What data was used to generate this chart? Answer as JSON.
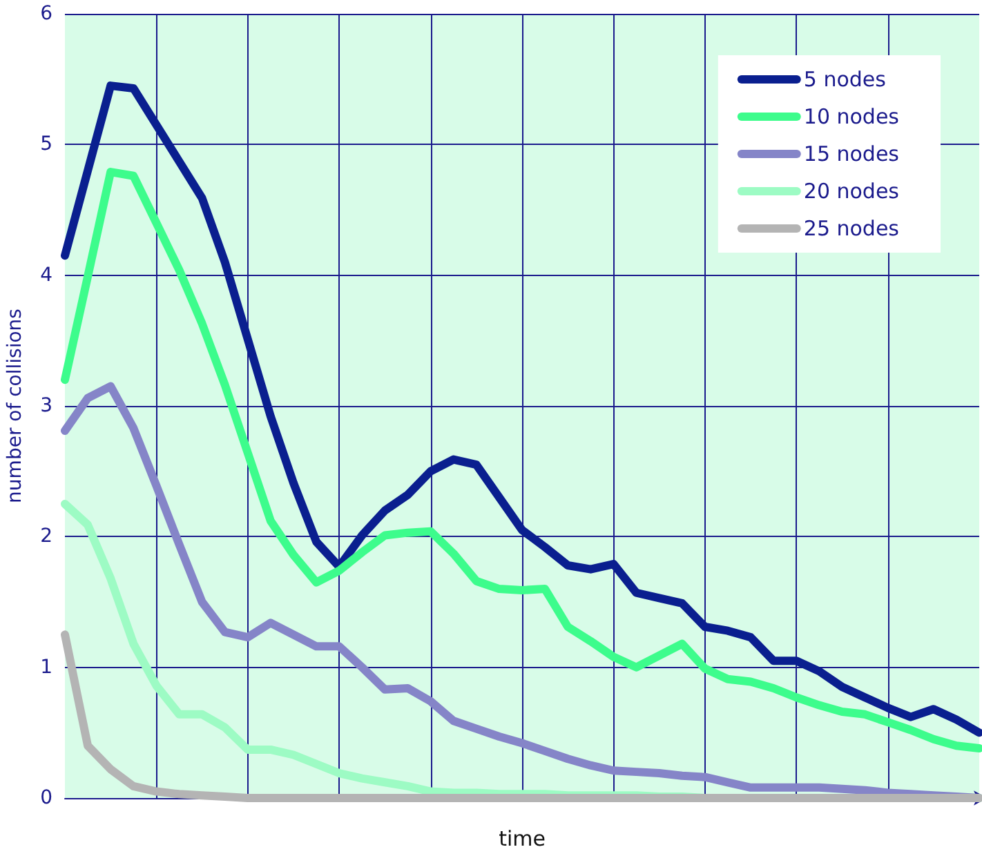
{
  "chart_data": {
    "type": "line",
    "xlabel": "time",
    "ylabel": "number of collisions",
    "categories": [
      null,
      null,
      null,
      null,
      null,
      null,
      null,
      null,
      null,
      null,
      null,
      null,
      null,
      null,
      null,
      null,
      null,
      null,
      null,
      null,
      null,
      null,
      null,
      null,
      null,
      null,
      null,
      null,
      null,
      null,
      null,
      null,
      null,
      null,
      null,
      null,
      null,
      null,
      null,
      null,
      null
    ],
    "series": [
      {
        "name": "5 nodes",
        "color": "#0a1f8f",
        "values": [
          4.15,
          4.8,
          5.45,
          5.43,
          5.15,
          4.87,
          4.59,
          4.1,
          3.51,
          2.92,
          2.41,
          1.96,
          1.77,
          2.01,
          2.2,
          2.32,
          2.5,
          2.59,
          2.55,
          2.3,
          2.05,
          1.92,
          1.78,
          1.75,
          1.79,
          1.57,
          1.53,
          1.49,
          1.31,
          1.28,
          1.23,
          1.05,
          1.05,
          0.97,
          0.85,
          0.77,
          0.69,
          0.62,
          0.68,
          0.6,
          0.5
        ]
      },
      {
        "name": "10 nodes",
        "color": "#3dfc8c",
        "values": [
          3.2,
          3.99,
          4.79,
          4.76,
          4.4,
          4.04,
          3.63,
          3.16,
          2.64,
          2.12,
          1.86,
          1.65,
          1.74,
          1.88,
          2.01,
          2.03,
          2.04,
          1.87,
          1.66,
          1.6,
          1.59,
          1.6,
          1.31,
          1.2,
          1.08,
          1.0,
          1.09,
          1.18,
          0.99,
          0.91,
          0.89,
          0.84,
          0.77,
          0.71,
          0.66,
          0.64,
          0.58,
          0.52,
          0.45,
          0.4,
          0.38
        ]
      },
      {
        "name": "15 nodes",
        "color": "#8585c8",
        "values": [
          2.81,
          3.06,
          3.15,
          2.83,
          2.39,
          1.94,
          1.5,
          1.27,
          1.23,
          1.34,
          1.25,
          1.16,
          1.16,
          1.0,
          0.83,
          0.84,
          0.74,
          0.59,
          0.53,
          0.47,
          0.42,
          0.36,
          0.3,
          0.25,
          0.21,
          0.2,
          0.19,
          0.17,
          0.16,
          0.12,
          0.08,
          0.08,
          0.08,
          0.08,
          0.07,
          0.06,
          0.04,
          0.03,
          0.02,
          0.01,
          0
        ]
      },
      {
        "name": "20 nodes",
        "color": "#9dfbc4",
        "values": [
          2.25,
          2.09,
          1.68,
          1.18,
          0.86,
          0.64,
          0.64,
          0.54,
          0.37,
          0.37,
          0.33,
          0.26,
          0.19,
          0.15,
          0.12,
          0.09,
          0.05,
          0.04,
          0.04,
          0.03,
          0.03,
          0.03,
          0.02,
          0.02,
          0.02,
          0.02,
          0.01,
          0.01,
          0,
          0,
          0,
          0,
          0,
          0,
          0,
          0,
          0,
          0,
          0,
          0,
          0
        ]
      },
      {
        "name": "25 nodes",
        "color": "#b4b4b4",
        "values": [
          1.25,
          0.4,
          0.22,
          0.09,
          0.05,
          0.03,
          0.02,
          0.01,
          0,
          0,
          0,
          0,
          0,
          0,
          0,
          0,
          0,
          0,
          0,
          0,
          0,
          0,
          0,
          0,
          0,
          0,
          0,
          0,
          0,
          0,
          0,
          0,
          0,
          0,
          0,
          0,
          0,
          0,
          0,
          0,
          0
        ]
      }
    ],
    "ylim": [
      0,
      6
    ],
    "yticks": [
      0,
      1,
      2,
      3,
      4,
      5,
      6
    ],
    "grid": true,
    "legend": "top right",
    "tick_labels": "y",
    "marker": "none",
    "line_style": "solid"
  }
}
